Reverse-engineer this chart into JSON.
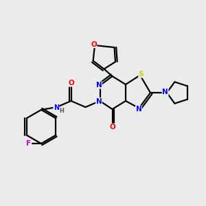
{
  "background_color": "#ebebeb",
  "atom_colors": {
    "C": "#000000",
    "N": "#0000ff",
    "O": "#ff0000",
    "S": "#cccc00",
    "F": "#cc00cc",
    "H": "#555555"
  },
  "figsize": [
    3.0,
    3.0
  ],
  "dpi": 100
}
